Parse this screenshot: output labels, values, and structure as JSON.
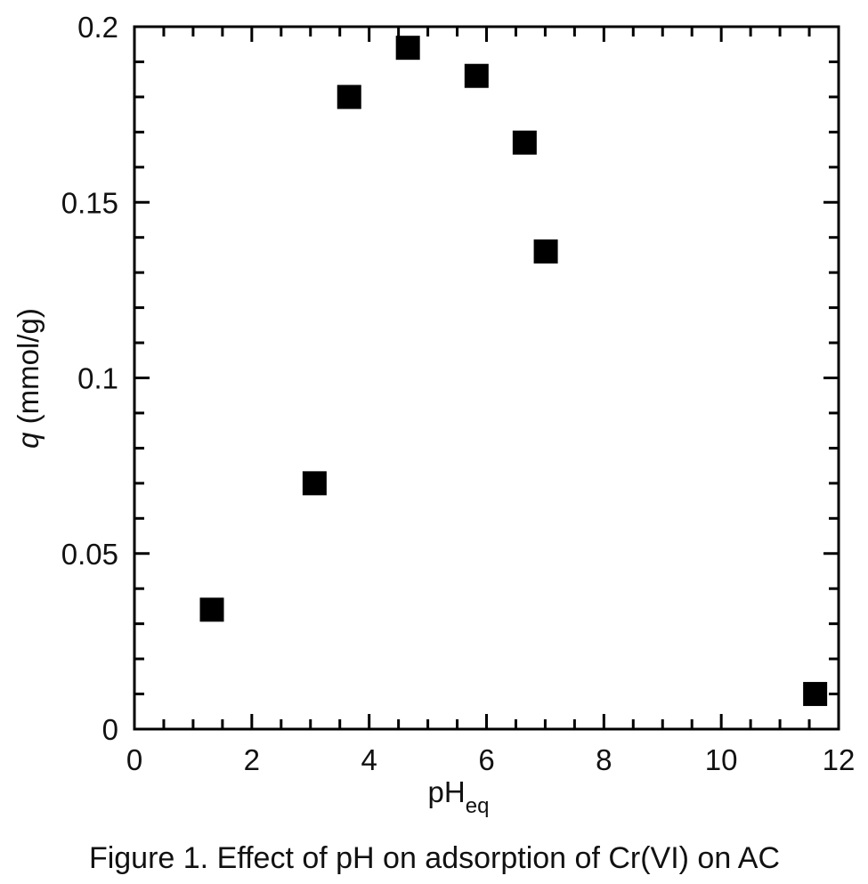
{
  "chart_data": {
    "type": "scatter",
    "title": "",
    "caption": "Figure 1. Effect of pH on adsorption of Cr(VI) on AC",
    "xlabel": {
      "main": "pH",
      "subscript": "eq"
    },
    "ylabel": {
      "italic": "q",
      "rest": " (mmol/g)"
    },
    "xlim": [
      0,
      12
    ],
    "ylim": [
      0,
      0.2
    ],
    "x_ticks": [
      "0",
      "2",
      "4",
      "6",
      "8",
      "10",
      "12"
    ],
    "y_ticks": [
      "0",
      "0.05",
      "0.1",
      "0.15",
      "0.2"
    ],
    "x_tick_values": [
      0,
      2,
      4,
      6,
      8,
      10,
      12
    ],
    "y_tick_values": [
      0,
      0.05,
      0.1,
      0.15,
      0.2
    ],
    "x_minor_step": 0.5,
    "y_minor_step": 0.01,
    "grid": false,
    "legend": "none",
    "marker": "filled-square",
    "marker_color": "#000000",
    "series": [
      {
        "name": "Cr(VI) on AC",
        "points": [
          {
            "x": 1.32,
            "y": 0.034
          },
          {
            "x": 3.07,
            "y": 0.07
          },
          {
            "x": 3.66,
            "y": 0.18
          },
          {
            "x": 4.66,
            "y": 0.194
          },
          {
            "x": 5.83,
            "y": 0.186
          },
          {
            "x": 6.65,
            "y": 0.167
          },
          {
            "x": 7.01,
            "y": 0.136
          },
          {
            "x": 11.6,
            "y": 0.01
          }
        ]
      }
    ]
  }
}
